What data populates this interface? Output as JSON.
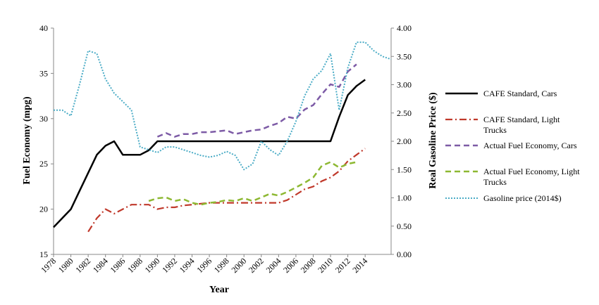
{
  "chart_data": {
    "type": "line",
    "xlabel": "Year",
    "ylabel": "Fuel Economy (mpg)",
    "y2label": "Real Gasoline Price ($)",
    "xlim": [
      1978,
      2017
    ],
    "ylim": [
      15,
      40
    ],
    "y2lim": [
      0,
      4
    ],
    "x_ticks": [
      "1978",
      "1980",
      "1982",
      "1984",
      "1986",
      "1988",
      "1990",
      "1992",
      "1994",
      "1996",
      "1998",
      "2000",
      "2002",
      "2004",
      "2006",
      "2008",
      "2010",
      "2012",
      "2014"
    ],
    "y_ticks": [
      "15",
      "20",
      "25",
      "30",
      "35",
      "40"
    ],
    "y2_ticks": [
      "0.00",
      "0.50",
      "1.00",
      "1.50",
      "2.00",
      "2.50",
      "3.00",
      "3.50",
      "4.00"
    ],
    "legend_position": "right",
    "grid": false,
    "series": [
      {
        "name": "CAFE Standard, Cars",
        "axis": "left",
        "color": "#000000",
        "style": "solid",
        "x": [
          1978,
          1979,
          1980,
          1981,
          1982,
          1983,
          1984,
          1985,
          1986,
          1987,
          1988,
          1989,
          1990,
          1991,
          1992,
          1993,
          1994,
          1995,
          1996,
          1997,
          1998,
          1999,
          2000,
          2001,
          2002,
          2003,
          2004,
          2005,
          2006,
          2007,
          2008,
          2009,
          2010,
          2011,
          2012,
          2013,
          2014
        ],
        "values": [
          18,
          19,
          20,
          22,
          24,
          26,
          27,
          27.5,
          26,
          26,
          26,
          26.5,
          27.5,
          27.5,
          27.5,
          27.5,
          27.5,
          27.5,
          27.5,
          27.5,
          27.5,
          27.5,
          27.5,
          27.5,
          27.5,
          27.5,
          27.5,
          27.5,
          27.5,
          27.5,
          27.5,
          27.5,
          27.5,
          30.2,
          32.6,
          33.6,
          34.3
        ]
      },
      {
        "name": "CAFE Standard, Light Trucks",
        "axis": "left",
        "color": "#c0392b",
        "style": "dashdot",
        "x": [
          1982,
          1983,
          1984,
          1985,
          1986,
          1987,
          1988,
          1989,
          1990,
          1991,
          1992,
          1993,
          1994,
          1995,
          1996,
          1997,
          1998,
          1999,
          2000,
          2001,
          2002,
          2003,
          2004,
          2005,
          2006,
          2007,
          2008,
          2009,
          2010,
          2011,
          2012,
          2013,
          2014
        ],
        "values": [
          17.5,
          19,
          20,
          19.5,
          20,
          20.5,
          20.5,
          20.5,
          20,
          20.2,
          20.2,
          20.4,
          20.5,
          20.6,
          20.7,
          20.7,
          20.7,
          20.7,
          20.7,
          20.7,
          20.7,
          20.7,
          20.7,
          21,
          21.6,
          22.2,
          22.5,
          23.1,
          23.5,
          24.2,
          25.3,
          26,
          26.7
        ]
      },
      {
        "name": "Actual Fuel Economy, Cars",
        "axis": "left",
        "color": "#7d5ba6",
        "style": "dashed",
        "x": [
          1990,
          1991,
          1992,
          1993,
          1994,
          1995,
          1996,
          1997,
          1998,
          1999,
          2000,
          2001,
          2002,
          2003,
          2004,
          2005,
          2006,
          2007,
          2008,
          2009,
          2010,
          2011,
          2012,
          2013
        ],
        "values": [
          28,
          28.4,
          28,
          28.3,
          28.3,
          28.5,
          28.5,
          28.6,
          28.7,
          28.3,
          28.5,
          28.7,
          28.8,
          29.2,
          29.5,
          30.2,
          30,
          31,
          31.5,
          32.7,
          33.8,
          33.5,
          35.2,
          36
        ]
      },
      {
        "name": "Actual Fuel Economy, Light Trucks",
        "axis": "left",
        "color": "#8db832",
        "style": "dashed",
        "x": [
          1989,
          1990,
          1991,
          1992,
          1993,
          1994,
          1995,
          1996,
          1997,
          1998,
          1999,
          2000,
          2001,
          2002,
          2003,
          2004,
          2005,
          2006,
          2007,
          2008,
          2009,
          2010,
          2011,
          2012,
          2013
        ],
        "values": [
          20.9,
          21.2,
          21.3,
          20.9,
          21.1,
          20.7,
          20.5,
          20.7,
          20.8,
          21,
          20.9,
          21.2,
          20.9,
          21.3,
          21.7,
          21.5,
          21.9,
          22.4,
          22.9,
          23.5,
          24.8,
          25.2,
          24.6,
          25,
          25.2
        ]
      },
      {
        "name": "Gasoline price (2014$)",
        "axis": "right",
        "color": "#4bacc6",
        "style": "dotted",
        "x": [
          1978,
          1979,
          1980,
          1981,
          1982,
          1983,
          1984,
          1985,
          1986,
          1987,
          1988,
          1989,
          1990,
          1991,
          1992,
          1993,
          1994,
          1995,
          1996,
          1997,
          1998,
          1999,
          2000,
          2001,
          2002,
          2003,
          2004,
          2005,
          2006,
          2007,
          2008,
          2009,
          2010,
          2011,
          2012,
          2013,
          2014,
          2015,
          2016,
          2017
        ],
        "values": [
          2.55,
          2.55,
          2.45,
          3.0,
          3.6,
          3.55,
          3.1,
          2.85,
          2.7,
          2.55,
          1.9,
          1.85,
          1.8,
          1.9,
          1.9,
          1.85,
          1.8,
          1.75,
          1.72,
          1.75,
          1.82,
          1.75,
          1.5,
          1.6,
          2.0,
          1.85,
          1.75,
          2.0,
          2.35,
          2.8,
          3.1,
          3.25,
          3.55,
          2.55,
          3.3,
          3.75,
          3.75,
          3.6,
          3.5,
          3.45
        ]
      }
    ]
  }
}
